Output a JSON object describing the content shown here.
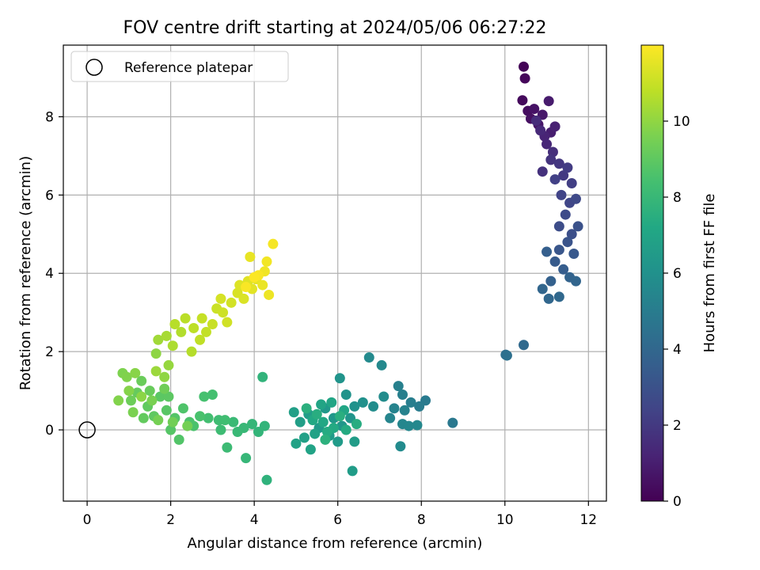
{
  "chart_data": {
    "type": "scatter",
    "title": "FOV centre drift starting at 2024/05/06 06:27:22",
    "xlabel": "Angular distance from reference (arcmin)",
    "ylabel": "Rotation from reference (arcmin)",
    "xlim": [
      -0.57,
      12.43
    ],
    "ylim": [
      -1.82,
      9.83
    ],
    "xticks": [
      0,
      2,
      4,
      6,
      8,
      10,
      12
    ],
    "yticks": [
      0,
      2,
      4,
      6,
      8
    ],
    "xtick_labels": [
      "0",
      "2",
      "4",
      "6",
      "8",
      "10",
      "12"
    ],
    "ytick_labels": [
      "0",
      "2",
      "4",
      "6",
      "8"
    ],
    "grid": true,
    "legend": {
      "placement": "upper-left",
      "entries": [
        "Reference platepar"
      ]
    },
    "reference_point": {
      "x": 0,
      "y": 0,
      "label": "Reference platepar"
    },
    "colorbar": {
      "label": "Hours from first FF file",
      "range": [
        0,
        12.0
      ],
      "ticks": [
        0,
        2,
        4,
        6,
        8,
        10
      ],
      "tick_labels": [
        "0",
        "2",
        "4",
        "6",
        "8",
        "10"
      ],
      "colormap": "viridis"
    },
    "series": [
      {
        "segment": "0-2h",
        "points": [
          [
            10.45,
            9.28,
            0.1
          ],
          [
            10.48,
            8.98,
            0.2
          ],
          [
            10.42,
            8.42,
            0.3
          ],
          [
            10.55,
            8.15,
            0.4
          ],
          [
            10.62,
            7.95,
            0.5
          ],
          [
            10.7,
            8.2,
            0.6
          ],
          [
            10.8,
            7.8,
            0.7
          ],
          [
            10.9,
            8.05,
            0.8
          ],
          [
            11.05,
            8.4,
            0.9
          ],
          [
            11.1,
            7.6,
            1.0
          ],
          [
            11.2,
            7.75,
            1.1
          ],
          [
            10.95,
            7.5,
            1.2
          ],
          [
            11.0,
            7.3,
            1.3
          ],
          [
            10.85,
            7.65,
            1.4
          ],
          [
            10.75,
            7.9,
            1.5
          ],
          [
            11.15,
            7.1,
            1.6
          ],
          [
            10.9,
            6.6,
            1.7
          ],
          [
            11.1,
            6.9,
            1.8
          ],
          [
            11.3,
            6.8,
            1.9
          ]
        ]
      },
      {
        "segment": "2-4h",
        "points": [
          [
            11.4,
            6.5,
            2.0
          ],
          [
            11.5,
            6.7,
            2.1
          ],
          [
            11.6,
            6.3,
            2.2
          ],
          [
            11.2,
            6.4,
            2.3
          ],
          [
            11.35,
            6.0,
            2.4
          ],
          [
            11.55,
            5.8,
            2.5
          ],
          [
            11.7,
            5.9,
            2.6
          ],
          [
            11.45,
            5.5,
            2.7
          ],
          [
            11.3,
            5.2,
            2.8
          ],
          [
            11.6,
            5.0,
            2.9
          ],
          [
            11.75,
            5.2,
            3.0
          ],
          [
            11.5,
            4.8,
            3.1
          ],
          [
            11.3,
            4.6,
            3.2
          ],
          [
            11.65,
            4.5,
            3.3
          ],
          [
            11.2,
            4.3,
            3.4
          ],
          [
            11.4,
            4.1,
            3.5
          ],
          [
            11.0,
            4.55,
            3.6
          ],
          [
            11.1,
            3.8,
            3.7
          ],
          [
            11.55,
            3.9,
            3.8
          ],
          [
            11.7,
            3.8,
            3.9
          ],
          [
            10.9,
            3.6,
            3.95
          ],
          [
            11.05,
            3.35,
            4.0
          ],
          [
            11.3,
            3.4,
            4.05
          ]
        ]
      },
      {
        "segment": "4-6h",
        "points": [
          [
            10.45,
            2.17,
            4.1
          ],
          [
            10.02,
            1.92,
            4.3
          ],
          [
            10.05,
            1.9,
            4.4
          ],
          [
            8.75,
            0.18,
            4.8
          ],
          [
            8.1,
            0.75,
            4.9
          ],
          [
            7.95,
            0.6,
            5.0
          ],
          [
            7.75,
            0.7,
            5.1
          ],
          [
            7.55,
            0.9,
            5.15
          ],
          [
            7.45,
            1.12,
            5.2
          ],
          [
            7.6,
            0.5,
            5.3
          ],
          [
            7.35,
            0.55,
            5.35
          ],
          [
            7.25,
            0.3,
            5.4
          ],
          [
            7.55,
            0.15,
            5.45
          ],
          [
            7.7,
            0.1,
            5.5
          ],
          [
            7.9,
            0.12,
            5.55
          ],
          [
            7.05,
            1.65,
            5.6
          ],
          [
            6.75,
            1.85,
            5.65
          ],
          [
            7.5,
            -0.42,
            5.7
          ],
          [
            7.1,
            0.85,
            5.75
          ],
          [
            6.85,
            0.6,
            5.8
          ]
        ]
      },
      {
        "segment": "6-8h",
        "points": [
          [
            6.6,
            0.7,
            6.0
          ],
          [
            6.4,
            0.6,
            6.05
          ],
          [
            6.2,
            0.9,
            6.1
          ],
          [
            6.05,
            1.32,
            6.15
          ],
          [
            6.3,
            0.3,
            6.2
          ],
          [
            6.1,
            0.1,
            6.25
          ],
          [
            5.9,
            0.3,
            6.3
          ],
          [
            5.7,
            0.55,
            6.35
          ],
          [
            5.55,
            0.05,
            6.4
          ],
          [
            5.8,
            -0.15,
            6.45
          ],
          [
            6.0,
            -0.3,
            6.5
          ],
          [
            6.35,
            -1.05,
            6.55
          ],
          [
            6.4,
            -0.3,
            6.6
          ],
          [
            5.3,
            0.4,
            6.65
          ],
          [
            5.1,
            0.2,
            6.7
          ],
          [
            4.95,
            0.45,
            6.75
          ],
          [
            5.2,
            -0.2,
            6.8
          ],
          [
            5.45,
            -0.1,
            6.85
          ],
          [
            5.0,
            -0.35,
            6.9
          ],
          [
            5.35,
            -0.5,
            6.95
          ],
          [
            5.6,
            0.65,
            7.0
          ],
          [
            5.85,
            0.7,
            7.05
          ],
          [
            6.15,
            0.5,
            7.1
          ],
          [
            5.65,
            0.2,
            7.15
          ],
          [
            5.4,
            0.25,
            7.2
          ],
          [
            5.9,
            0.05,
            7.25
          ],
          [
            6.2,
            0.0,
            7.3
          ],
          [
            5.75,
            -0.05,
            7.35
          ],
          [
            6.45,
            0.15,
            7.4
          ],
          [
            5.5,
            0.4,
            7.45
          ],
          [
            6.05,
            0.35,
            7.5
          ],
          [
            5.25,
            0.55,
            7.55
          ],
          [
            5.7,
            -0.25,
            7.6
          ]
        ]
      },
      {
        "segment": "8-10h",
        "points": [
          [
            4.3,
            -1.28,
            7.7
          ],
          [
            4.2,
            1.35,
            7.75
          ],
          [
            4.25,
            0.1,
            7.8
          ],
          [
            4.1,
            -0.05,
            7.85
          ],
          [
            3.95,
            0.15,
            7.9
          ],
          [
            3.8,
            -0.72,
            7.95
          ],
          [
            3.75,
            0.05,
            8.0
          ],
          [
            3.6,
            -0.05,
            8.05
          ],
          [
            3.5,
            0.2,
            8.1
          ],
          [
            3.35,
            -0.45,
            8.15
          ],
          [
            3.2,
            0.0,
            8.2
          ],
          [
            3.15,
            0.25,
            8.25
          ],
          [
            3.3,
            0.25,
            8.3
          ],
          [
            2.9,
            0.3,
            8.35
          ],
          [
            3.0,
            0.9,
            8.4
          ],
          [
            2.8,
            0.85,
            8.45
          ],
          [
            2.7,
            0.35,
            8.5
          ],
          [
            2.55,
            0.1,
            8.55
          ],
          [
            2.45,
            0.2,
            8.6
          ],
          [
            2.3,
            0.55,
            8.65
          ],
          [
            2.2,
            -0.25,
            8.7
          ],
          [
            2.1,
            0.3,
            8.75
          ],
          [
            2.0,
            0.0,
            8.8
          ],
          [
            1.9,
            0.5,
            8.85
          ],
          [
            1.75,
            0.85,
            8.9
          ],
          [
            1.95,
            0.85,
            8.95
          ],
          [
            1.6,
            0.35,
            9.0
          ],
          [
            1.45,
            0.6,
            9.05
          ],
          [
            1.35,
            0.3,
            9.1
          ],
          [
            1.2,
            0.95,
            9.15
          ],
          [
            1.5,
            1.0,
            9.2
          ],
          [
            1.3,
            1.25,
            9.25
          ],
          [
            1.05,
            0.75,
            9.3
          ],
          [
            1.85,
            1.05,
            9.35
          ],
          [
            2.05,
            0.2,
            9.4
          ],
          [
            2.4,
            0.1,
            9.45
          ],
          [
            1.7,
            0.25,
            9.5
          ],
          [
            1.55,
            0.75,
            9.55
          ],
          [
            1.1,
            0.45,
            9.6
          ]
        ]
      },
      {
        "segment": "10-12h",
        "points": [
          [
            0.85,
            1.45,
            9.65
          ],
          [
            0.95,
            1.35,
            9.7
          ],
          [
            0.75,
            0.75,
            9.75
          ],
          [
            1.0,
            1.0,
            9.8
          ],
          [
            1.15,
            1.45,
            9.85
          ],
          [
            1.3,
            0.85,
            9.9
          ],
          [
            1.65,
            1.95,
            9.95
          ],
          [
            1.85,
            1.35,
            10.0
          ],
          [
            1.95,
            1.65,
            10.1
          ],
          [
            1.65,
            1.5,
            10.2
          ],
          [
            1.7,
            2.3,
            10.3
          ],
          [
            1.9,
            2.4,
            10.4
          ],
          [
            2.05,
            2.15,
            10.5
          ],
          [
            2.25,
            2.5,
            10.6
          ],
          [
            2.5,
            2.0,
            10.65
          ],
          [
            2.1,
            2.7,
            10.7
          ],
          [
            2.35,
            2.85,
            10.75
          ],
          [
            2.55,
            2.6,
            10.8
          ],
          [
            2.7,
            2.3,
            10.85
          ],
          [
            2.85,
            2.5,
            10.9
          ],
          [
            2.75,
            2.85,
            10.95
          ],
          [
            3.0,
            2.7,
            11.0
          ],
          [
            3.1,
            3.1,
            11.05
          ],
          [
            3.25,
            3.0,
            11.1
          ],
          [
            3.35,
            2.75,
            11.15
          ],
          [
            3.45,
            3.25,
            11.2
          ],
          [
            3.2,
            3.35,
            11.25
          ],
          [
            3.6,
            3.5,
            11.3
          ],
          [
            3.75,
            3.35,
            11.35
          ],
          [
            3.65,
            3.7,
            11.4
          ],
          [
            3.85,
            3.8,
            11.45
          ],
          [
            3.95,
            3.6,
            11.5
          ],
          [
            4.05,
            3.85,
            11.55
          ],
          [
            3.9,
            4.42,
            11.6
          ],
          [
            4.2,
            3.7,
            11.65
          ],
          [
            4.35,
            3.45,
            11.7
          ],
          [
            4.25,
            4.05,
            11.75
          ],
          [
            4.3,
            4.3,
            11.8
          ],
          [
            4.45,
            4.75,
            11.85
          ],
          [
            4.1,
            3.95,
            11.9
          ],
          [
            3.8,
            3.65,
            11.93
          ],
          [
            4.0,
            3.9,
            11.96
          ]
        ]
      }
    ]
  }
}
